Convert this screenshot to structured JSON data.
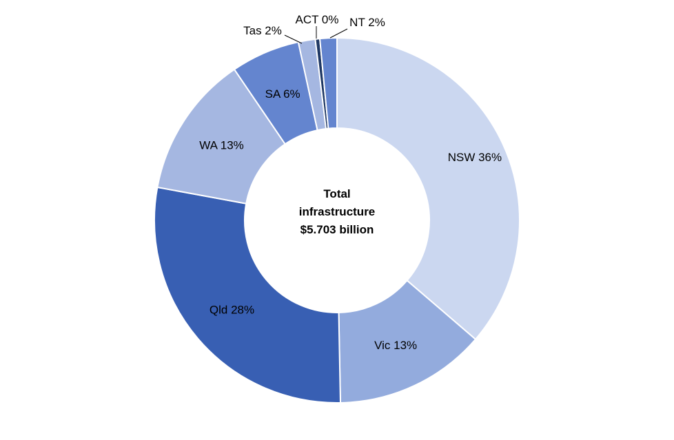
{
  "chart_data": {
    "type": "pie",
    "variant": "donut",
    "legend": "none",
    "center_label": [
      "Total",
      "infrastructure",
      "$5.703 billion"
    ],
    "slices": [
      {
        "category": "NSW",
        "label": "NSW 36%",
        "value": 36.3,
        "color": "#CBD7F0"
      },
      {
        "category": "Vic",
        "label": "Vic 13%",
        "value": 13.4,
        "color": "#93ABDD"
      },
      {
        "category": "Qld",
        "label": "Qld 28%",
        "value": 28.2,
        "color": "#385FB3"
      },
      {
        "category": "WA",
        "label": "WA 13%",
        "value": 12.6,
        "color": "#A5B7E1"
      },
      {
        "category": "SA",
        "label": "SA 6%",
        "value": 6.1,
        "color": "#6485CF"
      },
      {
        "category": "Tas",
        "label": "Tas 2%",
        "value": 1.5,
        "color": "#A5B7E1"
      },
      {
        "category": "ACT",
        "label": "ACT 0%",
        "value": 0.4,
        "color": "#1F3864"
      },
      {
        "category": "NT",
        "label": "NT 2%",
        "value": 1.5,
        "color": "#6485CF"
      }
    ]
  }
}
